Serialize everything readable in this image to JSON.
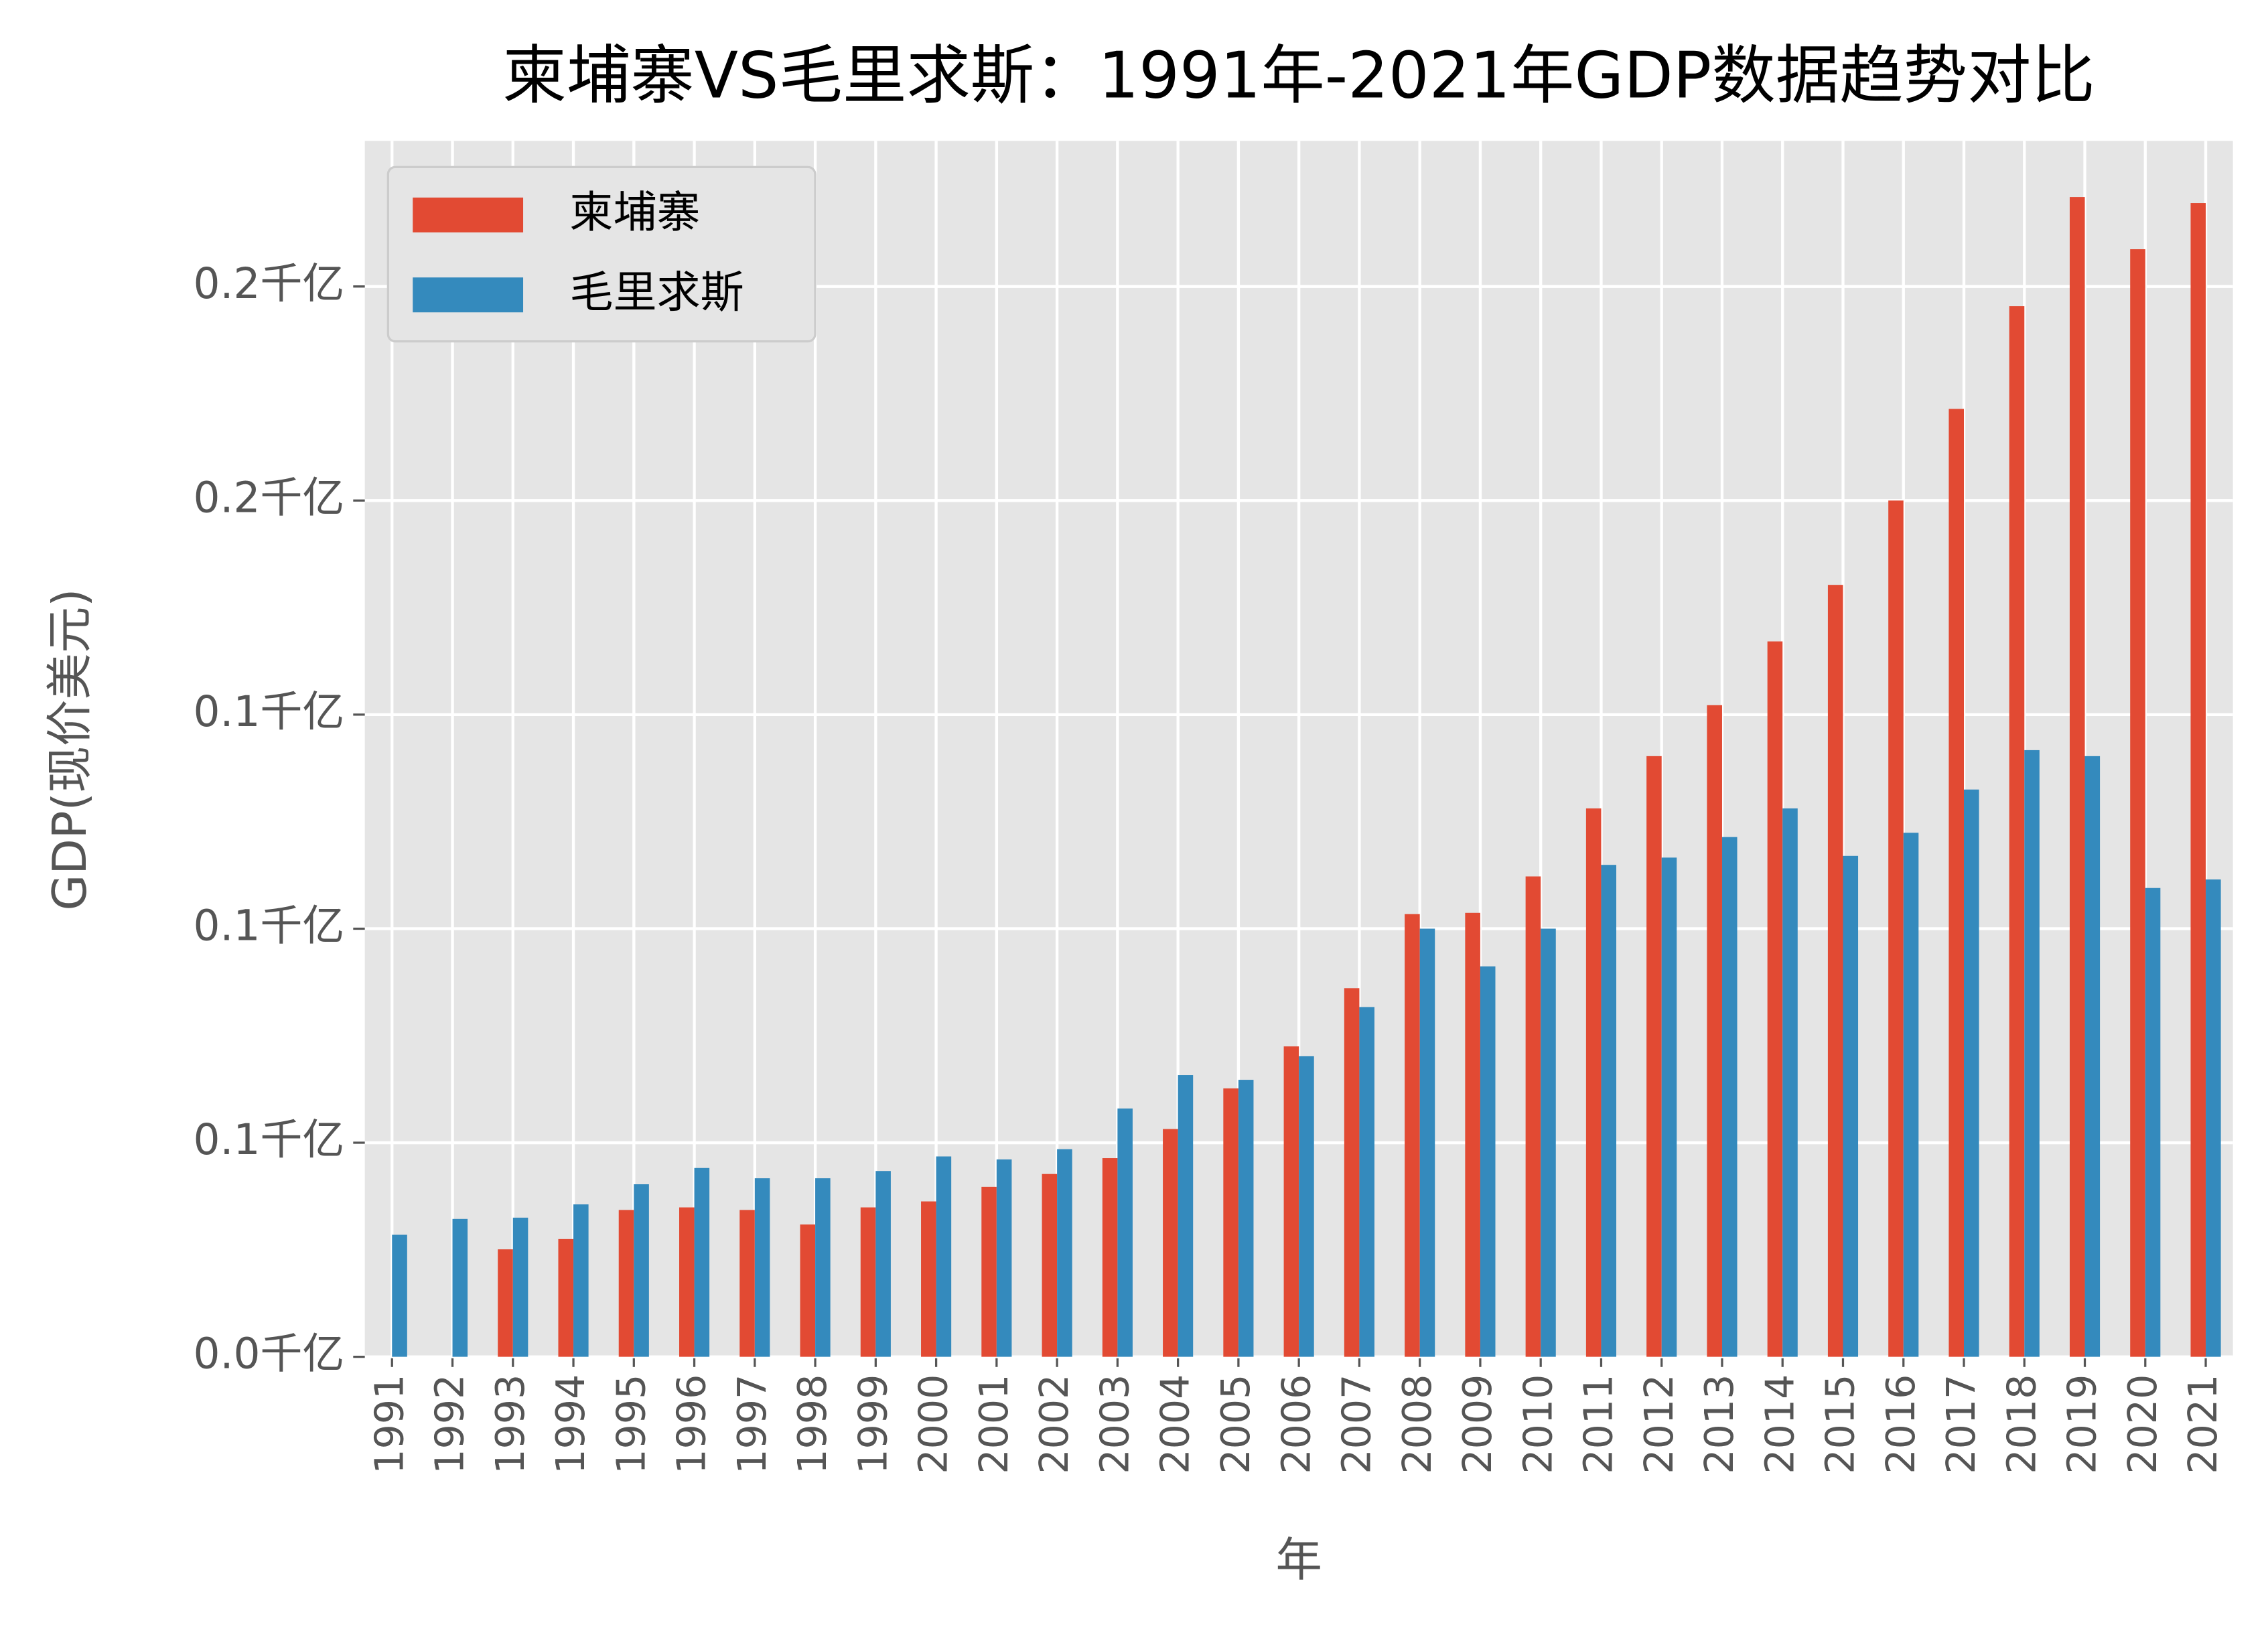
{
  "chart_data": {
    "type": "bar",
    "title": "柬埔寨VS毛里求斯：1991年-2021年GDP数据趋势对比",
    "x_label": "年",
    "y_label": "GDP(现价美元)",
    "categories": [
      "1991",
      "1992",
      "1993",
      "1994",
      "1995",
      "1996",
      "1997",
      "1998",
      "1999",
      "2000",
      "2001",
      "2002",
      "2003",
      "2004",
      "2005",
      "2006",
      "2007",
      "2008",
      "2009",
      "2010",
      "2011",
      "2012",
      "2013",
      "2014",
      "2015",
      "2016",
      "2017",
      "2018",
      "2019",
      "2020",
      "2021"
    ],
    "series": [
      {
        "name": "柬埔寨",
        "color": "#E24A33",
        "values": [
          null,
          null,
          0.0251,
          0.0275,
          0.0343,
          0.0349,
          0.0343,
          0.0309,
          0.0349,
          0.0363,
          0.0397,
          0.0427,
          0.0464,
          0.0532,
          0.0627,
          0.0725,
          0.0861,
          0.1034,
          0.1037,
          0.1122,
          0.1281,
          0.1403,
          0.1522,
          0.1671,
          0.1803,
          0.2,
          0.2214,
          0.2454,
          0.2709,
          0.2587,
          0.2695
        ]
      },
      {
        "name": "毛里求斯",
        "color": "#348ABD",
        "values": [
          0.0285,
          0.0322,
          0.0325,
          0.0356,
          0.0403,
          0.0441,
          0.0417,
          0.0417,
          0.0434,
          0.0468,
          0.0461,
          0.0485,
          0.058,
          0.0658,
          0.0647,
          0.0702,
          0.0817,
          0.1,
          0.0912,
          0.1,
          0.1149,
          0.1166,
          0.1214,
          0.1281,
          0.117,
          0.1224,
          0.1325,
          0.1417,
          0.1403,
          0.1095,
          0.1115
        ]
      }
    ],
    "ylim": [
      0,
      0.284
    ],
    "yticks": [
      {
        "value": 0,
        "label": "0.0千亿"
      },
      {
        "value": 0.05,
        "label": "0.1千亿"
      },
      {
        "value": 0.1,
        "label": "0.1千亿"
      },
      {
        "value": 0.15,
        "label": "0.1千亿"
      },
      {
        "value": 0.2,
        "label": "0.2千亿"
      },
      {
        "value": 0.25,
        "label": "0.2千亿"
      }
    ],
    "grid": true,
    "legend": "upper left"
  }
}
